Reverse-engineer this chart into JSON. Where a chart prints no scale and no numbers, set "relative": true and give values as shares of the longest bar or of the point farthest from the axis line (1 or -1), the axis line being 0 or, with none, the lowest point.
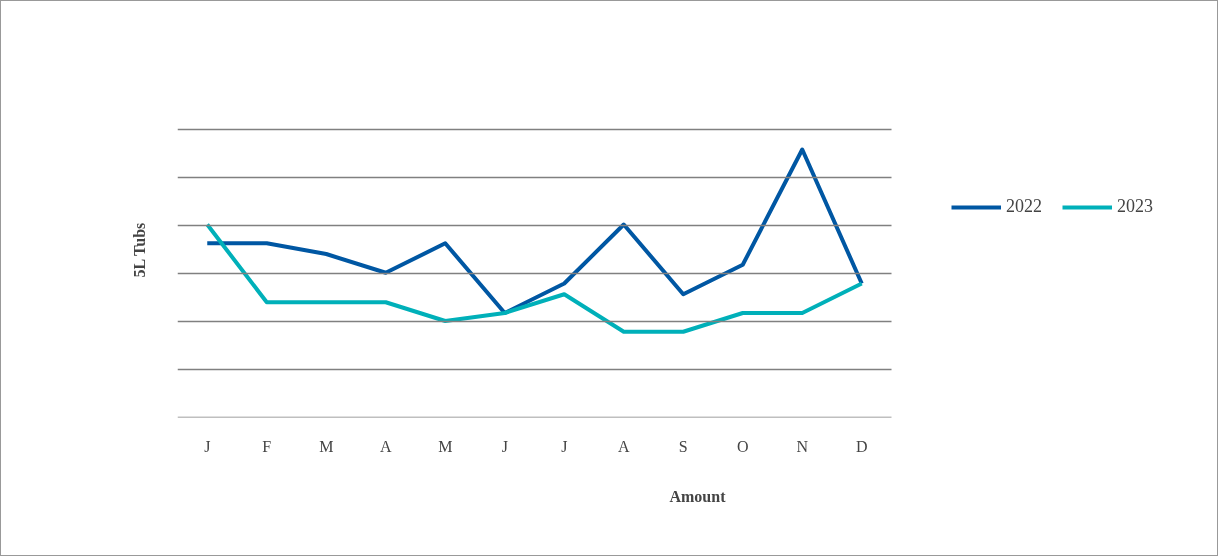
{
  "chart_data": {
    "type": "line",
    "relative": true,
    "ylabel": "5L Tubs",
    "xlabel": "Amount",
    "categories": [
      "J",
      "F",
      "M",
      "A",
      "M",
      "J",
      "J",
      "A",
      "S",
      "O",
      "N",
      "D"
    ],
    "series": [
      {
        "name": "2022",
        "color": "#0057a3",
        "values": [
          0.65,
          0.65,
          0.61,
          0.54,
          0.65,
          0.39,
          0.5,
          0.72,
          0.46,
          0.57,
          1,
          0.5
        ]
      },
      {
        "name": "2023",
        "color": "#00b0b9",
        "values": [
          0.72,
          0.43,
          0.43,
          0.43,
          0.36,
          0.39,
          0.46,
          0.32,
          0.32,
          0.39,
          0.39,
          0.5
        ]
      }
    ],
    "grid": "y",
    "legend": "right",
    "marker": "none",
    "line_style": "solid"
  }
}
